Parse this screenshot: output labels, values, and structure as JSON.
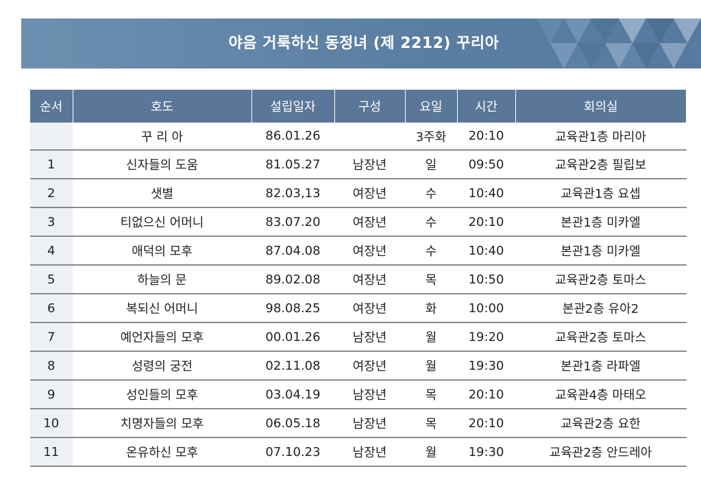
{
  "title": "야음 거룩하신 동정녀 (제 2212) 꾸리아",
  "colors": {
    "banner": "#5b7fa3",
    "header": "#5a7799"
  },
  "table": {
    "headers": [
      "순서",
      "호도",
      "설립일자",
      "구성",
      "요일",
      "시간",
      "회의실"
    ],
    "rows": [
      [
        "",
        "꾸 리 아",
        "86.01.26",
        "",
        "3주화",
        "20:10",
        "교육관1층 마리아"
      ],
      [
        "1",
        "신자들의 도움",
        "81.05.27",
        "남장년",
        "일",
        "09:50",
        "교육관2층 필립보"
      ],
      [
        "2",
        "샛별",
        "82.03,13",
        "여장년",
        "수",
        "10:40",
        "교육관1층 요셉"
      ],
      [
        "3",
        "티없으신 어머니",
        "83.07.20",
        "여장년",
        "수",
        "20:10",
        "본관1층 미카엘"
      ],
      [
        "4",
        "애덕의 모후",
        "87.04.08",
        "여장년",
        "수",
        "10:40",
        "본관1층 미카엘"
      ],
      [
        "5",
        "하늘의 문",
        "89.02.08",
        "여장년",
        "목",
        "10:50",
        "교육관2층 토마스"
      ],
      [
        "6",
        "복되신 어머니",
        "98.08.25",
        "여장년",
        "화",
        "10:00",
        "본관2층 유아2"
      ],
      [
        "7",
        "예언자들의 모후",
        "00.01.26",
        "남장년",
        "월",
        "19:20",
        "교육관2층 토마스"
      ],
      [
        "8",
        "성령의 궁전",
        "02.11.08",
        "여장년",
        "월",
        "19:30",
        "본관1층 라파엘"
      ],
      [
        "9",
        "성인들의 모후",
        "03.04.19",
        "남장년",
        "목",
        "20:10",
        "교육관4층 마태오"
      ],
      [
        "10",
        "치명자들의 모후",
        "06.05.18",
        "남장년",
        "목",
        "20:10",
        "교육관2층 요한"
      ],
      [
        "11",
        "온유하신 모후",
        "07.10.23",
        "남장년",
        "월",
        "19:30",
        "교육관2층 안드레아"
      ]
    ]
  }
}
